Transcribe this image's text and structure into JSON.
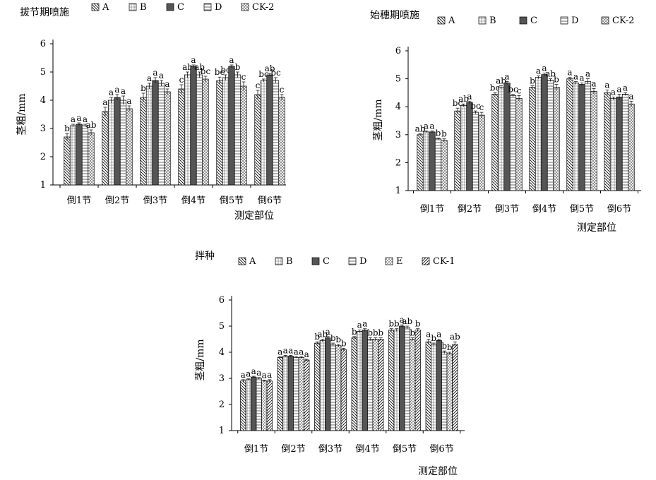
{
  "chart_data": [
    {
      "type": "bar",
      "title": "拔节期喷施",
      "xlabel": "测定部位",
      "ylabel": "茎粗/mm",
      "ylim": [
        1,
        6
      ],
      "yticks": [
        "1",
        "2",
        "3",
        "4",
        "5",
        "6"
      ],
      "categories": [
        "倒1节",
        "倒2节",
        "倒3节",
        "倒4节",
        "倒5节",
        "倒6节"
      ],
      "legend_position": "top",
      "series": [
        {
          "name": "A",
          "pattern": "diag",
          "values": [
            2.7,
            3.6,
            4.1,
            4.4,
            4.7,
            4.2
          ],
          "errors": [
            0.12,
            0.15,
            0.15,
            0.15,
            0.12,
            0.15
          ],
          "labels": [
            "b",
            "a",
            "b",
            "c",
            "bc",
            "c"
          ]
        },
        {
          "name": "B",
          "pattern": "cross",
          "values": [
            3.1,
            4.0,
            4.5,
            4.9,
            4.8,
            4.7
          ],
          "errors": [
            0.05,
            0.1,
            0.1,
            0.1,
            0.1,
            0.05
          ],
          "labels": [
            "a",
            "a",
            "a",
            "ab",
            "bc",
            "bc"
          ]
        },
        {
          "name": "C",
          "pattern": "dark",
          "values": [
            3.15,
            4.1,
            4.7,
            5.2,
            5.2,
            4.9
          ],
          "errors": [
            0.05,
            0.1,
            0.1,
            0.05,
            0.05,
            0.05
          ],
          "labels": [
            "a",
            "a",
            "a",
            "a",
            "a",
            "ab"
          ]
        },
        {
          "name": "D",
          "pattern": "hlines",
          "values": [
            3.1,
            4.0,
            4.6,
            4.9,
            4.9,
            4.7
          ],
          "errors": [
            0.05,
            0.15,
            0.1,
            0.1,
            0.1,
            0.1
          ],
          "labels": [
            "a",
            "a",
            "a",
            "ab",
            "b",
            "bc"
          ]
        },
        {
          "name": "CK-2",
          "pattern": "xhatch",
          "values": [
            2.85,
            3.7,
            4.3,
            4.75,
            4.5,
            4.1
          ],
          "errors": [
            0.1,
            0.1,
            0.1,
            0.1,
            0.15,
            0.1
          ],
          "labels": [
            "ab",
            "a",
            "a",
            "bc",
            "c",
            "c"
          ]
        }
      ]
    },
    {
      "type": "bar",
      "title": "始穗期喷施",
      "xlabel": "测定部位",
      "ylabel": "茎粗/mm",
      "ylim": [
        1,
        6
      ],
      "yticks": [
        "1",
        "2",
        "3",
        "4",
        "5",
        "6"
      ],
      "categories": [
        "倒1节",
        "倒2节",
        "倒3节",
        "倒4节",
        "倒5节",
        "倒6节"
      ],
      "legend_position": "top",
      "series": [
        {
          "name": "A",
          "pattern": "diag",
          "values": [
            3.0,
            3.85,
            4.45,
            4.7,
            5.0,
            4.5
          ],
          "errors": [
            0.03,
            0.1,
            0.05,
            0.05,
            0.05,
            0.1
          ],
          "labels": [
            "ab",
            "bc",
            "bc",
            "b",
            "a",
            "a"
          ]
        },
        {
          "name": "B",
          "pattern": "cross",
          "values": [
            3.1,
            4.05,
            4.7,
            5.05,
            4.85,
            4.3
          ],
          "errors": [
            0.03,
            0.05,
            0.05,
            0.05,
            0.05,
            0.05
          ],
          "labels": [
            "a",
            "ab",
            "ab",
            "a",
            "a",
            "a"
          ]
        },
        {
          "name": "C",
          "pattern": "dark",
          "values": [
            3.1,
            4.15,
            4.85,
            5.15,
            4.8,
            4.35
          ],
          "errors": [
            0.03,
            0.05,
            0.05,
            0.05,
            0.05,
            0.1
          ],
          "labels": [
            "a",
            "a",
            "a",
            "a",
            "a",
            "a"
          ]
        },
        {
          "name": "D",
          "pattern": "hlines",
          "values": [
            2.85,
            3.8,
            4.4,
            4.95,
            4.9,
            4.45
          ],
          "errors": [
            0.03,
            0.05,
            0.05,
            0.05,
            0.1,
            0.05
          ],
          "labels": [
            "b",
            "bc",
            "bc",
            "ab",
            "a",
            "a"
          ]
        },
        {
          "name": "CK-2",
          "pattern": "xhatch",
          "values": [
            2.8,
            3.7,
            4.3,
            4.7,
            4.55,
            4.1
          ],
          "errors": [
            0.05,
            0.1,
            0.1,
            0.1,
            0.1,
            0.1
          ],
          "labels": [
            "b",
            "c",
            "c",
            "b",
            "a",
            "a"
          ]
        }
      ]
    },
    {
      "type": "bar",
      "title": "拌种",
      "xlabel": "测定部位",
      "ylabel": "茎粗/mm",
      "ylim": [
        1,
        6
      ],
      "yticks": [
        "1",
        "2",
        "3",
        "4",
        "5",
        "6"
      ],
      "categories": [
        "倒1节",
        "倒2节",
        "倒3节",
        "倒4节",
        "倒5节",
        "倒6节"
      ],
      "legend_position": "top",
      "series": [
        {
          "name": "A",
          "pattern": "diag",
          "values": [
            2.9,
            3.8,
            4.35,
            4.55,
            4.85,
            4.4
          ],
          "errors": [
            0.05,
            0.03,
            0.05,
            0.05,
            0.05,
            0.1
          ],
          "labels": [
            "a",
            "a",
            "b",
            "b",
            "b",
            "a"
          ]
        },
        {
          "name": "B",
          "pattern": "cross",
          "values": [
            2.95,
            3.85,
            4.45,
            4.8,
            4.85,
            4.3
          ],
          "errors": [
            0.03,
            0.03,
            0.05,
            0.05,
            0.05,
            0.05
          ],
          "labels": [
            "a",
            "a",
            "ab",
            "a",
            "b",
            "b"
          ]
        },
        {
          "name": "C",
          "pattern": "dark",
          "values": [
            3.05,
            3.85,
            4.55,
            4.85,
            5.0,
            4.45
          ],
          "errors": [
            0.03,
            0.03,
            0.05,
            0.05,
            0.05,
            0.05
          ],
          "labels": [
            "a",
            "a",
            "a",
            "a",
            "a",
            "a"
          ]
        },
        {
          "name": "D",
          "pattern": "hlines",
          "values": [
            3.0,
            3.8,
            4.3,
            4.5,
            4.95,
            4.0
          ],
          "errors": [
            0.03,
            0.03,
            0.05,
            0.05,
            0.05,
            0.05
          ],
          "labels": [
            "a",
            "a",
            "b",
            "b",
            "ab",
            "b"
          ]
        },
        {
          "name": "E",
          "pattern": "dashed",
          "values": [
            2.9,
            3.8,
            4.25,
            4.5,
            4.5,
            3.95
          ],
          "errors": [
            0.03,
            0.03,
            0.05,
            0.05,
            0.05,
            0.05
          ],
          "labels": [
            "a",
            "a",
            "b",
            "b",
            "b",
            "b"
          ]
        },
        {
          "name": "CK-1",
          "pattern": "diag2",
          "values": [
            2.9,
            3.7,
            4.1,
            4.5,
            4.85,
            4.3
          ],
          "errors": [
            0.05,
            0.03,
            0.05,
            0.05,
            0.05,
            0.1
          ],
          "labels": [
            "a",
            "a",
            "b",
            "b",
            "b",
            "ab"
          ]
        }
      ]
    }
  ]
}
